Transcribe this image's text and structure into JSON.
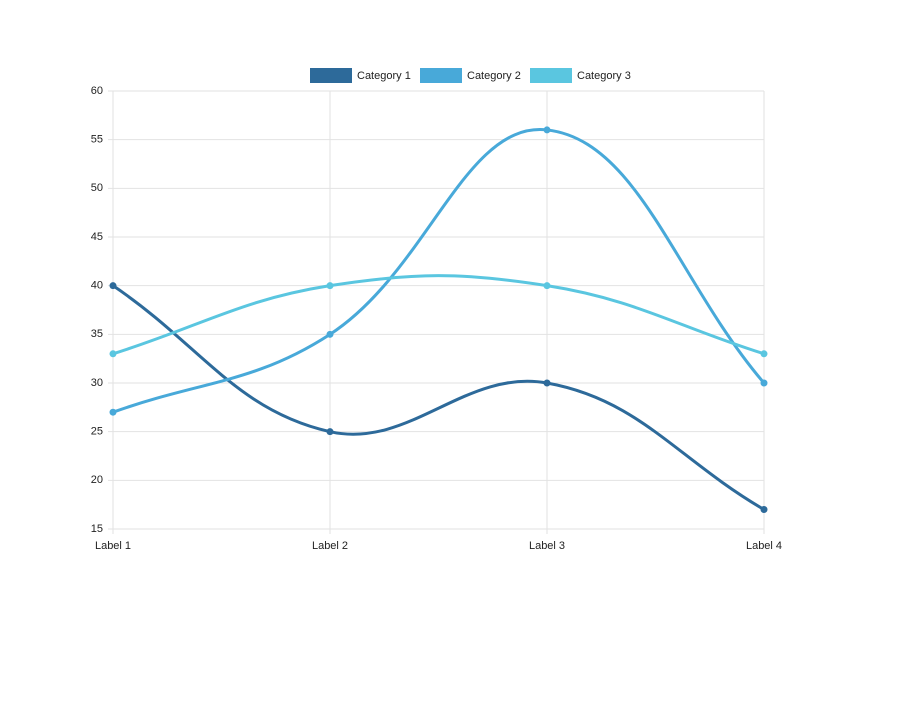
{
  "chart_data": {
    "type": "line",
    "categories": [
      "Label 1",
      "Label 2",
      "Label 3",
      "Label 4"
    ],
    "series": [
      {
        "name": "Category 1",
        "color": "#2d6a9a",
        "values": [
          40,
          25,
          30,
          17
        ]
      },
      {
        "name": "Category 2",
        "color": "#48a9d9",
        "values": [
          27,
          35,
          56,
          30
        ]
      },
      {
        "name": "Category 3",
        "color": "#5ac6e0",
        "values": [
          33,
          40,
          40,
          33
        ]
      }
    ],
    "ylim": [
      15,
      60
    ],
    "yticks": [
      15,
      20,
      25,
      30,
      35,
      40,
      45,
      50,
      55,
      60
    ],
    "grid": true,
    "smooth": true,
    "legend": "top"
  }
}
